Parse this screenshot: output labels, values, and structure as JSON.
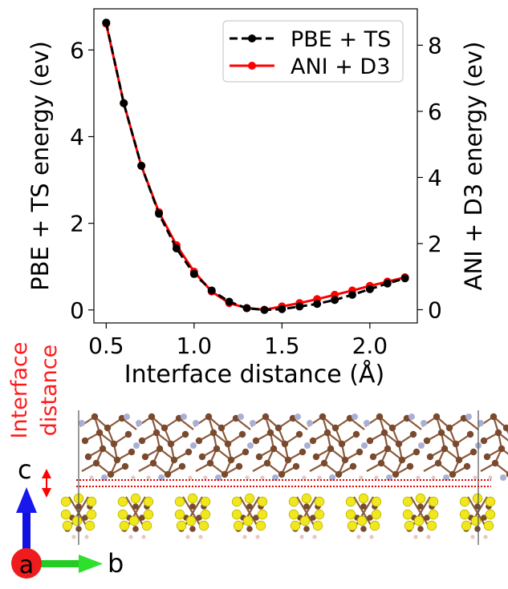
{
  "chart_data": {
    "type": "line",
    "title": "",
    "xlabel": "Interface distance (Å)",
    "ylabel": "PBE + TS energy (ev)",
    "ylabel_right": "ANI + D3 energy (ev)",
    "xlim": [
      0.43,
      2.27
    ],
    "ylim": [
      -0.3,
      6.95
    ],
    "ylim_right": [
      -0.4,
      9.1
    ],
    "x_ticks": [
      0.5,
      1.0,
      1.5,
      2.0
    ],
    "x_tick_labels": [
      "0.5",
      "1.0",
      "1.5",
      "2.0"
    ],
    "y_ticks": [
      0,
      2,
      4,
      6
    ],
    "y_tick_labels": [
      "0",
      "2",
      "4",
      "6"
    ],
    "y_ticks_right": [
      0,
      2,
      4,
      6,
      8
    ],
    "y_tick_labels_right": [
      "0",
      "2",
      "4",
      "6",
      "8"
    ],
    "legend_position": "top-right",
    "x": [
      0.5,
      0.6,
      0.7,
      0.8,
      0.9,
      1.0,
      1.1,
      1.2,
      1.3,
      1.4,
      1.5,
      1.6,
      1.7,
      1.8,
      1.9,
      2.0,
      2.1,
      2.2
    ],
    "series": [
      {
        "name": "PBE + TS",
        "axis": "left",
        "color": "#000000",
        "dashed": true,
        "values": [
          6.63,
          4.77,
          3.33,
          2.22,
          1.42,
          0.83,
          0.45,
          0.19,
          0.04,
          0.0,
          0.02,
          0.08,
          0.14,
          0.23,
          0.35,
          0.48,
          0.61,
          0.73
        ]
      },
      {
        "name": "ANI + D3",
        "axis": "right",
        "color": "#ff0000",
        "dashed": false,
        "values": [
          8.65,
          6.25,
          4.35,
          2.95,
          1.95,
          1.15,
          0.55,
          0.2,
          0.05,
          0.0,
          0.1,
          0.2,
          0.32,
          0.45,
          0.58,
          0.72,
          0.85,
          0.98
        ]
      }
    ]
  },
  "structure": {
    "interface_label_line1": "Interface",
    "interface_label_line2": "distance",
    "axis_c": "c",
    "axis_a": "a",
    "axis_b": "b",
    "label_color": "#ff1a1a"
  }
}
